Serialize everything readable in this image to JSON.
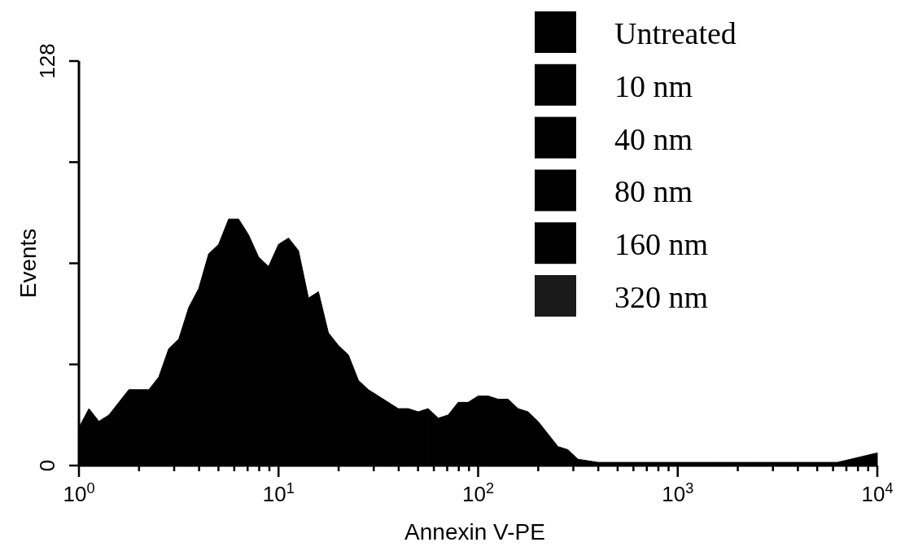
{
  "chart_data": {
    "type": "area",
    "xlabel": "Annexin V-PE",
    "ylabel": "Events",
    "log": "x",
    "legend": "top right",
    "xlim": [
      1,
      10000
    ],
    "ylim": [
      0,
      128
    ],
    "xticks": [
      {
        "value": 1,
        "label": "10$^{0}$"
      },
      {
        "value": 2,
        "label": null
      },
      {
        "value": 3,
        "label": null
      },
      {
        "value": 4,
        "label": null
      },
      {
        "value": 5,
        "label": null
      },
      {
        "value": 6,
        "label": null
      },
      {
        "value": 7,
        "label": null
      },
      {
        "value": 8,
        "label": null
      },
      {
        "value": 9,
        "label": null
      },
      {
        "value": 10,
        "label": "10$^{1}$"
      },
      {
        "value": 20,
        "label": null
      },
      {
        "value": 30,
        "label": null
      },
      {
        "value": 40,
        "label": null
      },
      {
        "value": 50,
        "label": null
      },
      {
        "value": 60,
        "label": null
      },
      {
        "value": 70,
        "label": null
      },
      {
        "value": 80,
        "label": null
      },
      {
        "value": 90,
        "label": null
      },
      {
        "value": 100,
        "label": "10$^{2}$"
      },
      {
        "value": 200,
        "label": null
      },
      {
        "value": 300,
        "label": null
      },
      {
        "value": 400,
        "label": null
      },
      {
        "value": 500,
        "label": null
      },
      {
        "value": 600,
        "label": null
      },
      {
        "value": 700,
        "label": null
      },
      {
        "value": 800,
        "label": null
      },
      {
        "value": 900,
        "label": null
      },
      {
        "value": 1000,
        "label": "10$^{3}$"
      },
      {
        "value": 2000,
        "label": null
      },
      {
        "value": 3000,
        "label": null
      },
      {
        "value": 4000,
        "label": null
      },
      {
        "value": 5000,
        "label": null
      },
      {
        "value": 6000,
        "label": null
      },
      {
        "value": 7000,
        "label": null
      },
      {
        "value": 8000,
        "label": null
      },
      {
        "value": 9000,
        "label": null
      },
      {
        "value": 10000,
        "label": "10$^{4}$"
      }
    ],
    "yticks": [
      0,
      {
        "value": 32,
        "label": null
      },
      {
        "value": 64,
        "label": null
      },
      {
        "value": 96,
        "label": null
      },
      128
    ],
    "series": [
      {
        "name": "Untreated",
        "color": "#000000",
        "x": [
          1,
          1.122,
          1.259,
          1.413,
          1.585,
          1.778,
          1.995,
          2.239,
          2.512,
          2.818,
          3.162,
          3.548,
          3.981,
          4.467,
          5.012,
          5.623,
          6.31,
          7.079,
          7.943,
          8.913
        ],
        "values": [
          12,
          18,
          14,
          16,
          20,
          24,
          24,
          24,
          28,
          37,
          40,
          50,
          56,
          67,
          70,
          78,
          78,
          73,
          66,
          63
        ]
      },
      {
        "name": "10 nm",
        "color": "#000000",
        "x": [
          8.913,
          10,
          11.22,
          12.59,
          14.13,
          15.85,
          17.78,
          19.95,
          22.39,
          25.12,
          28.18,
          31.62,
          35.48,
          39.81,
          44.67,
          50.12,
          56.23
        ],
        "values": [
          63,
          70,
          72,
          68,
          53,
          55,
          42,
          38,
          35,
          27,
          24,
          22,
          20,
          18,
          18,
          17,
          18
        ]
      },
      {
        "name": "40 nm",
        "color": "#000000",
        "x": [
          56.23,
          63.1,
          70.79,
          79.43,
          89.13,
          100,
          112.2,
          125.9,
          141.3,
          158.5,
          177.8,
          199.5,
          223.9,
          251.2,
          281.8,
          316.2,
          398.1,
          631,
          1000,
          1585,
          2512,
          3981,
          6310,
          10000
        ],
        "values": [
          18,
          15,
          16,
          20,
          20,
          22,
          22,
          21,
          21,
          18,
          17,
          14,
          10,
          6,
          5,
          2,
          1,
          1,
          1,
          1,
          1,
          1,
          1,
          4
        ]
      },
      {
        "name": "80 nm",
        "color": "#000000"
      },
      {
        "name": "160 nm",
        "color": "#000000"
      },
      {
        "name": "320 nm",
        "color": "#1a1a1a"
      }
    ]
  }
}
